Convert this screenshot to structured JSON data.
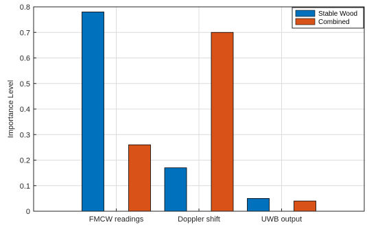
{
  "chart_data": {
    "type": "bar",
    "categories": [
      "FMCW readings",
      "Doppler shift",
      "UWB output"
    ],
    "series": [
      {
        "name": "Stable Wood",
        "values": [
          0.78,
          0.17,
          0.05
        ],
        "color": "#0072BD"
      },
      {
        "name": "Combined",
        "values": [
          0.26,
          0.7,
          0.04
        ],
        "color": "#D95319"
      }
    ],
    "title": "",
    "xlabel": "",
    "ylabel": "Importance Level",
    "ylim": [
      0,
      0.8
    ],
    "yticks": [
      "0",
      "0.1",
      "0.2",
      "0.3",
      "0.4",
      "0.5",
      "0.6",
      "0.7",
      "0.8"
    ],
    "grid": true,
    "legend_position": "top-right"
  }
}
